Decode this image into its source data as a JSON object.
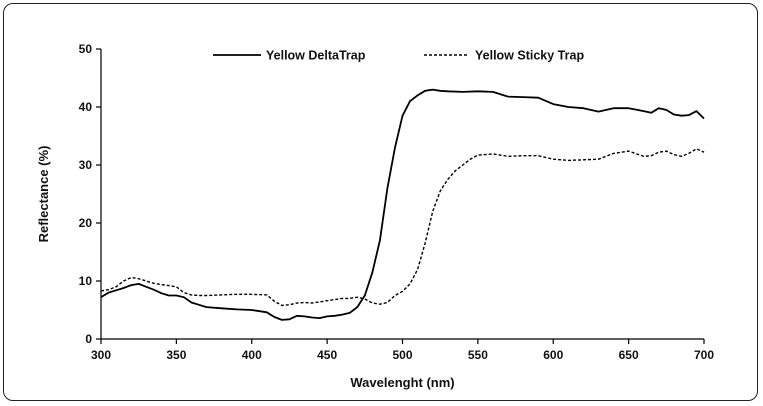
{
  "chart_data": {
    "type": "line",
    "title": "",
    "xlabel": "Wavelenght (nm)",
    "ylabel": "Reflectance (%)",
    "xlim": [
      300,
      700
    ],
    "ylim": [
      0,
      50
    ],
    "xticks": [
      300,
      350,
      400,
      450,
      500,
      550,
      600,
      650,
      700
    ],
    "yticks": [
      0,
      10,
      20,
      30,
      40,
      50
    ],
    "grid": false,
    "legend_position": "top",
    "series": [
      {
        "name": "Yellow DeltaTrap",
        "style": "solid",
        "color": "#000000",
        "x": [
          300,
          305,
          310,
          315,
          320,
          325,
          330,
          335,
          340,
          345,
          350,
          355,
          360,
          365,
          370,
          380,
          390,
          400,
          410,
          415,
          420,
          425,
          430,
          435,
          440,
          445,
          450,
          455,
          460,
          465,
          470,
          475,
          480,
          485,
          490,
          495,
          500,
          505,
          510,
          515,
          520,
          525,
          530,
          540,
          550,
          560,
          570,
          580,
          590,
          600,
          610,
          620,
          630,
          640,
          650,
          660,
          665,
          670,
          675,
          680,
          685,
          690,
          695,
          700
        ],
        "values": [
          7.2,
          8.0,
          8.4,
          8.8,
          9.3,
          9.5,
          9.0,
          8.5,
          7.9,
          7.5,
          7.5,
          7.2,
          6.3,
          5.9,
          5.5,
          5.3,
          5.1,
          5.0,
          4.6,
          3.8,
          3.3,
          3.4,
          4.0,
          3.9,
          3.7,
          3.6,
          3.9,
          4.0,
          4.2,
          4.5,
          5.5,
          7.5,
          11.5,
          17.0,
          26.0,
          33.0,
          38.5,
          41.0,
          42.0,
          42.8,
          43.0,
          42.8,
          42.7,
          42.6,
          42.7,
          42.6,
          41.8,
          41.7,
          41.6,
          40.5,
          40.0,
          39.8,
          39.2,
          39.8,
          39.8,
          39.3,
          39.0,
          39.8,
          39.5,
          38.7,
          38.5,
          38.6,
          39.3,
          38.0
        ]
      },
      {
        "name": "Yellow Sticky Trap",
        "style": "dashed",
        "color": "#000000",
        "x": [
          300,
          305,
          310,
          315,
          320,
          325,
          330,
          335,
          340,
          345,
          350,
          355,
          360,
          365,
          370,
          380,
          390,
          400,
          410,
          415,
          420,
          425,
          430,
          435,
          440,
          445,
          450,
          455,
          460,
          465,
          470,
          475,
          480,
          485,
          490,
          495,
          500,
          505,
          510,
          515,
          520,
          525,
          530,
          535,
          540,
          545,
          550,
          560,
          570,
          580,
          590,
          600,
          610,
          620,
          630,
          640,
          650,
          660,
          665,
          670,
          675,
          680,
          685,
          690,
          695,
          700
        ],
        "values": [
          8.3,
          8.5,
          9.0,
          10.0,
          10.6,
          10.4,
          10.0,
          9.6,
          9.4,
          9.2,
          9.0,
          8.0,
          7.6,
          7.5,
          7.5,
          7.6,
          7.7,
          7.7,
          7.6,
          6.5,
          5.8,
          5.9,
          6.2,
          6.3,
          6.2,
          6.4,
          6.6,
          6.8,
          7.0,
          7.0,
          7.2,
          6.9,
          6.2,
          6.0,
          6.3,
          7.5,
          8.2,
          9.5,
          12.0,
          16.5,
          22.0,
          25.5,
          27.5,
          29.0,
          30.0,
          31.0,
          31.7,
          31.9,
          31.5,
          31.6,
          31.6,
          31.0,
          30.8,
          30.9,
          31.0,
          32.0,
          32.4,
          31.5,
          31.6,
          32.2,
          32.4,
          31.8,
          31.5,
          32.0,
          32.8,
          32.2
        ]
      }
    ]
  }
}
